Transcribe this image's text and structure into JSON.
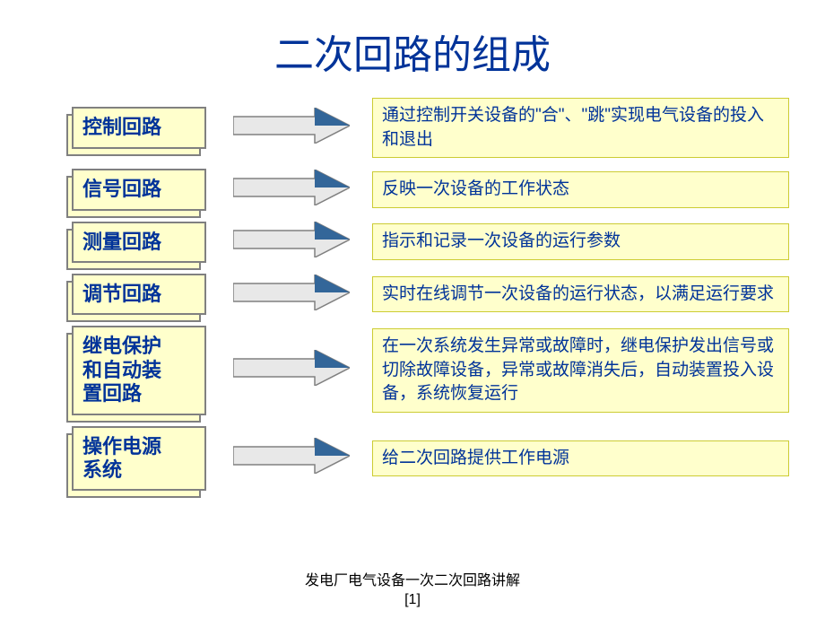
{
  "title": {
    "text": "二次回路的组成",
    "color": "#003399",
    "fontsize": 44
  },
  "colors": {
    "box_bg": "#ffffcc",
    "box_border": "#808080",
    "shadow_bg": "#ffffcc",
    "shadow_border": "#808080",
    "label_text": "#003399",
    "desc_text": "#003399",
    "desc_border": "#cccc33",
    "desc_bg": "#ffffcc",
    "arrow_stroke": "#808080",
    "arrow_fill_light": "#e8e8e8",
    "arrow_fill_dark": "#336699",
    "footer_text": "#000000"
  },
  "sizes": {
    "label_fontsize": 22,
    "desc_fontsize": 19,
    "footer_fontsize": 16,
    "arrow_width": 130,
    "arrow_height": 40,
    "label_width": 150
  },
  "rows": [
    {
      "label": "控制回路",
      "desc": "通过控制开关设备的\"合\"、\"跳\"实现电气设备的投入和退出",
      "label_lines": 1
    },
    {
      "label": "信号回路",
      "desc": "反映一次设备的工作状态",
      "label_lines": 1
    },
    {
      "label": "测量回路",
      "desc": "指示和记录一次设备的运行参数",
      "label_lines": 1
    },
    {
      "label": "调节回路",
      "desc": "实时在线调节一次设备的运行状态，以满足运行要求",
      "label_lines": 1
    },
    {
      "label": "继电保护\n和自动装\n置回路",
      "desc": "在一次系统发生异常或故障时，继电保护发出信号或切除故障设备，异常或故障消失后，自动装置投入设备，系统恢复运行",
      "label_lines": 3
    },
    {
      "label": "操作电源\n系统",
      "desc": "给二次回路提供工作电源",
      "label_lines": 2
    }
  ],
  "footer": {
    "line1": "发电厂电气设备一次二次回路讲解",
    "line2": "[1]"
  }
}
